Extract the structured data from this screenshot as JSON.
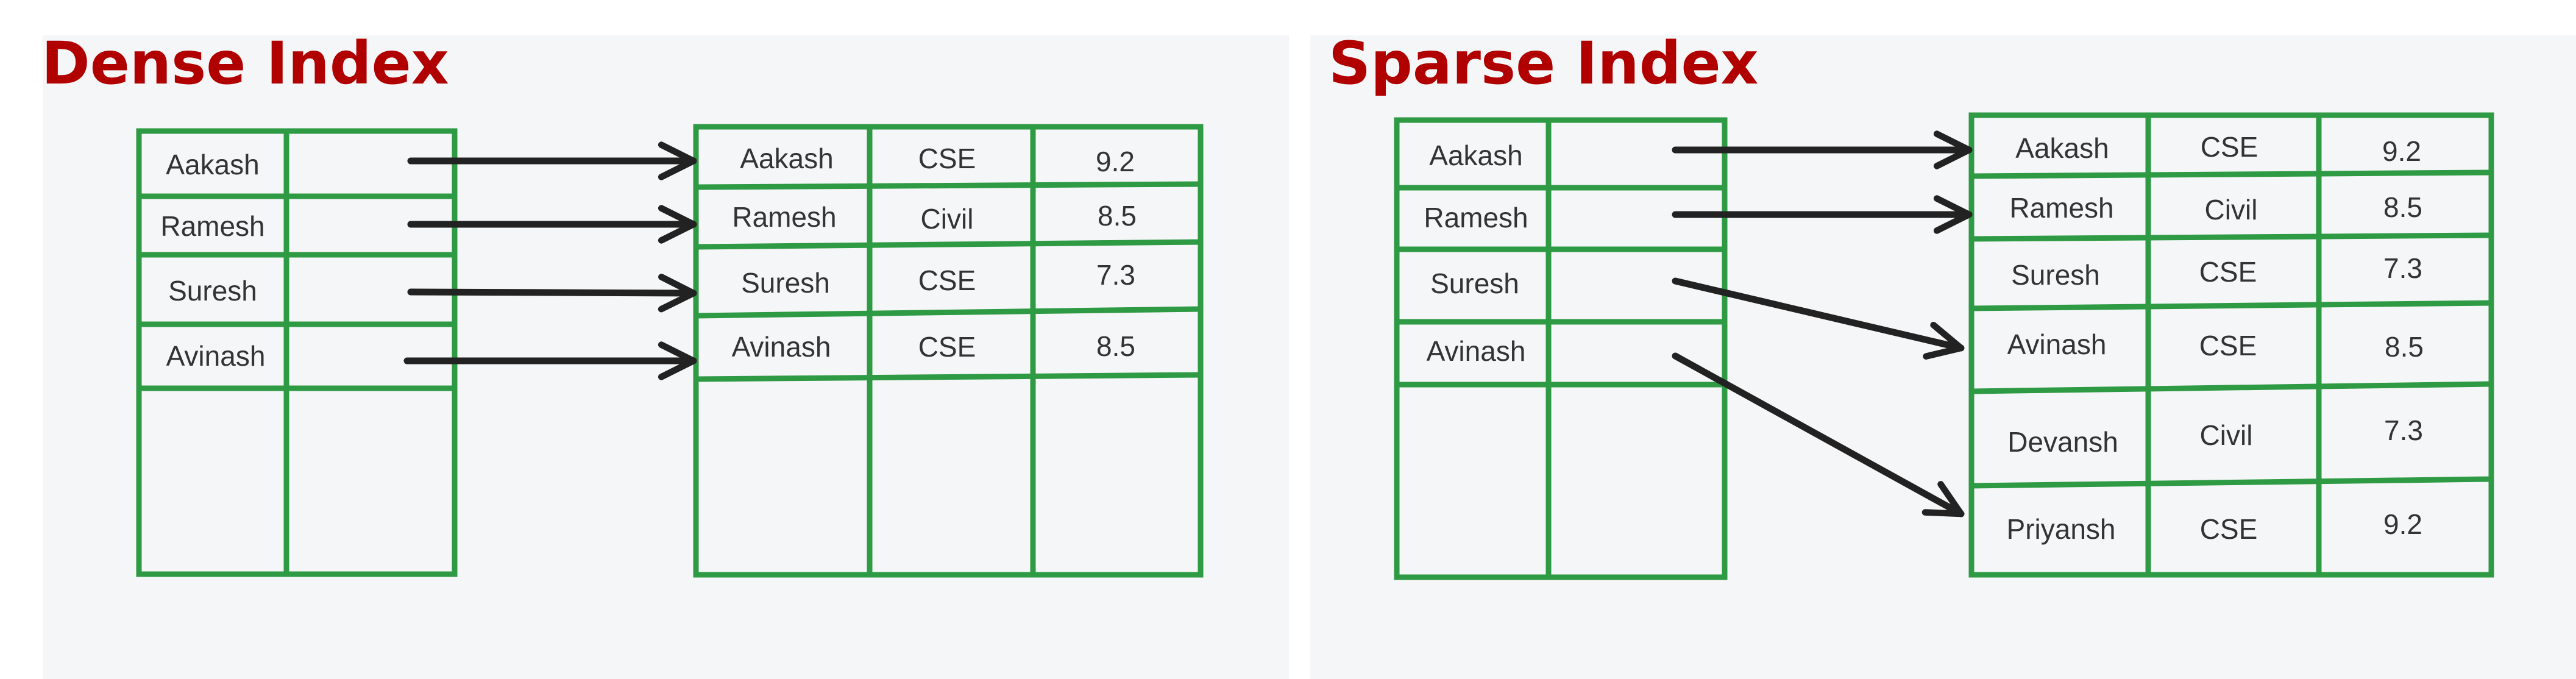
{
  "dense": {
    "title": "Dense Index",
    "index_entries": [
      "Aakash",
      "Ramesh",
      "Suresh",
      "Avinash"
    ],
    "records": [
      [
        "Aakash",
        "CSE",
        "9.2"
      ],
      [
        "Ramesh",
        "Civil",
        "8.5"
      ],
      [
        "Suresh",
        "CSE",
        "7.3"
      ],
      [
        "Avinash",
        "CSE",
        "8.5"
      ]
    ]
  },
  "sparse": {
    "title": "Sparse Index",
    "index_entries": [
      "Aakash",
      "Ramesh",
      "Suresh",
      "Avinash"
    ],
    "records": [
      [
        "Aakash",
        "CSE",
        "9.2"
      ],
      [
        "Ramesh",
        "Civil",
        "8.5"
      ],
      [
        "Suresh",
        "CSE",
        "7.3"
      ],
      [
        "Avinash",
        "CSE",
        "8.5"
      ],
      [
        "Devansh",
        "Civil",
        "7.3"
      ],
      [
        "Priyansh",
        "CSE",
        "9.2"
      ]
    ]
  },
  "colors": {
    "title": "#b00000",
    "grid": "#2e9a44",
    "arrow": "#222222",
    "panel_bg": "#f5f6f8"
  }
}
